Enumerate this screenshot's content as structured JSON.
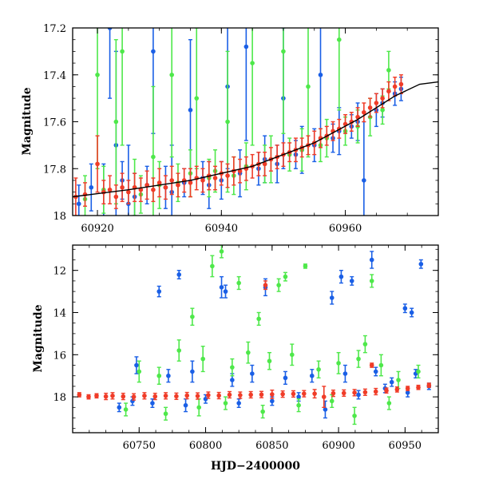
{
  "colors": {
    "blue": "#1a5fe6",
    "red": "#f03c28",
    "green": "#4ee84a",
    "model": "#000000"
  },
  "chart_data": [
    {
      "type": "scatter",
      "panel": "top",
      "xlabel": "",
      "ylabel": "Magnitude",
      "xlim": [
        60916,
        60975
      ],
      "ylim": [
        18.0,
        17.2
      ],
      "y_inverted": true,
      "x_ticks": [
        60920,
        60940,
        60960
      ],
      "x_tick_labels": [
        "60920",
        "60940",
        "60960"
      ],
      "y_ticks": [
        17.2,
        17.4,
        17.6,
        17.8,
        18.0
      ],
      "y_tick_labels": [
        "17.2",
        "17.4",
        "17.6",
        "17.8",
        "18"
      ],
      "model_curve": {
        "x": [
          60916,
          60925,
          60935,
          60945,
          60955,
          60962,
          60968,
          60972,
          60975
        ],
        "y": [
          17.92,
          17.89,
          17.85,
          17.79,
          17.69,
          17.59,
          17.49,
          17.44,
          17.43
        ]
      },
      "series": [
        {
          "color": "blue",
          "x": [
            60917,
            60919,
            60921,
            60922,
            60923,
            60924,
            60925,
            60926,
            60928,
            60929,
            60931,
            60932,
            60934,
            60935,
            60937,
            60938,
            60940,
            60941,
            60943,
            60944,
            60946,
            60947,
            60949,
            60950,
            60952,
            60953,
            60955,
            60956,
            60958,
            60959,
            60961,
            60962,
            60963,
            60965,
            60966,
            60968,
            60969
          ],
          "y": [
            17.95,
            17.88,
            17.9,
            17.2,
            17.7,
            17.85,
            17.95,
            17.92,
            17.87,
            17.3,
            17.88,
            17.9,
            17.86,
            17.55,
            17.84,
            17.87,
            17.85,
            17.45,
            17.82,
            17.28,
            17.8,
            17.76,
            17.78,
            17.5,
            17.74,
            17.72,
            17.7,
            17.4,
            17.67,
            17.64,
            17.62,
            17.6,
            17.85,
            17.55,
            17.52,
            17.48,
            17.46
          ],
          "err": [
            0.08,
            0.1,
            0.12,
            0.3,
            0.4,
            0.08,
            0.25,
            0.1,
            0.08,
            0.35,
            0.09,
            0.2,
            0.06,
            0.3,
            0.07,
            0.1,
            0.08,
            0.35,
            0.1,
            0.4,
            0.07,
            0.1,
            0.08,
            0.3,
            0.06,
            0.1,
            0.07,
            0.3,
            0.06,
            0.1,
            0.05,
            0.08,
            0.25,
            0.07,
            0.06,
            0.05,
            0.05
          ]
        },
        {
          "color": "green",
          "x": [
            60918,
            60920,
            60921,
            60923,
            60924,
            60926,
            60927,
            60929,
            60930,
            60932,
            60933,
            60935,
            60936,
            60938,
            60939,
            60941,
            60942,
            60944,
            60945,
            60947,
            60948,
            60950,
            60951,
            60953,
            60954,
            60956,
            60957,
            60959,
            60960,
            60962,
            60964,
            60966,
            60967
          ],
          "y": [
            17.93,
            17.4,
            17.89,
            17.6,
            17.3,
            17.88,
            17.91,
            17.75,
            17.87,
            17.4,
            17.86,
            17.82,
            17.5,
            17.84,
            17.81,
            17.6,
            17.83,
            17.79,
            17.35,
            17.78,
            17.76,
            17.3,
            17.74,
            17.72,
            17.45,
            17.7,
            17.67,
            17.25,
            17.64,
            17.62,
            17.58,
            17.55,
            17.38
          ],
          "err": [
            0.1,
            0.4,
            0.1,
            0.35,
            0.4,
            0.12,
            0.08,
            0.3,
            0.1,
            0.35,
            0.08,
            0.1,
            0.3,
            0.08,
            0.09,
            0.3,
            0.08,
            0.1,
            0.35,
            0.08,
            0.1,
            0.35,
            0.07,
            0.09,
            0.3,
            0.07,
            0.08,
            0.3,
            0.06,
            0.07,
            0.08,
            0.06,
            0.08
          ]
        },
        {
          "color": "red",
          "x": [
            60916.5,
            60918,
            60920,
            60921,
            60922,
            60923,
            60924,
            60925,
            60926,
            60927,
            60928,
            60929,
            60930,
            60931,
            60932,
            60933,
            60934,
            60935,
            60936,
            60937,
            60938,
            60939,
            60940,
            60941,
            60942,
            60943,
            60944,
            60945,
            60946,
            60947,
            60948,
            60949,
            60950,
            60951,
            60952,
            60953,
            60954,
            60955,
            60956,
            60957,
            60958,
            60959,
            60960,
            60961,
            60962,
            60963,
            60964,
            60965,
            60966,
            60967,
            60968,
            60969
          ],
          "y": [
            17.92,
            17.91,
            17.78,
            17.9,
            17.89,
            17.92,
            17.88,
            17.9,
            17.88,
            17.89,
            17.87,
            17.89,
            17.86,
            17.88,
            17.85,
            17.87,
            17.85,
            17.86,
            17.84,
            17.85,
            17.83,
            17.84,
            17.82,
            17.83,
            17.81,
            17.81,
            17.8,
            17.79,
            17.78,
            17.78,
            17.76,
            17.75,
            17.74,
            17.73,
            17.72,
            17.71,
            17.7,
            17.69,
            17.67,
            17.66,
            17.64,
            17.63,
            17.61,
            17.6,
            17.58,
            17.56,
            17.54,
            17.52,
            17.5,
            17.47,
            17.45,
            17.44
          ],
          "err": [
            0.08,
            0.05,
            0.12,
            0.05,
            0.06,
            0.05,
            0.06,
            0.05,
            0.06,
            0.05,
            0.06,
            0.05,
            0.06,
            0.05,
            0.06,
            0.05,
            0.05,
            0.06,
            0.05,
            0.05,
            0.06,
            0.05,
            0.05,
            0.05,
            0.06,
            0.05,
            0.05,
            0.05,
            0.05,
            0.05,
            0.05,
            0.05,
            0.05,
            0.04,
            0.05,
            0.04,
            0.04,
            0.05,
            0.04,
            0.04,
            0.04,
            0.04,
            0.04,
            0.04,
            0.04,
            0.04,
            0.04,
            0.04,
            0.04,
            0.04,
            0.04,
            0.04
          ]
        }
      ]
    },
    {
      "type": "scatter",
      "panel": "bottom",
      "xlabel": "HJD−2400000",
      "ylabel": "Magnitude",
      "xlim": [
        60700,
        60975
      ],
      "ylim": [
        19.7,
        10.8
      ],
      "y_inverted": true,
      "x_ticks": [
        60750,
        60800,
        60850,
        60900,
        60950
      ],
      "x_tick_labels": [
        "60750",
        "60800",
        "60850",
        "60900",
        "60950"
      ],
      "y_ticks": [
        12,
        14,
        16,
        18
      ],
      "y_tick_labels": [
        "12",
        "14",
        "16",
        "18"
      ],
      "series": [
        {
          "color": "blue",
          "x": [
            60765,
            60780,
            60812,
            60815,
            60845,
            60895,
            60902,
            60910,
            60925,
            60928,
            60950,
            60955,
            60962,
            60748,
            60772,
            60790,
            60820,
            60835,
            60860,
            60880,
            60905,
            60940,
            60958,
            60735,
            60745,
            60760,
            60785,
            60800,
            60825,
            60850,
            60870,
            60890,
            60915,
            60935,
            60952,
            60968
          ],
          "y": [
            13.0,
            12.2,
            12.8,
            13.0,
            12.8,
            13.3,
            12.3,
            12.5,
            11.5,
            16.8,
            13.8,
            14.0,
            11.7,
            16.5,
            17.0,
            16.8,
            17.2,
            16.9,
            17.1,
            17.0,
            16.9,
            17.3,
            16.9,
            18.5,
            18.2,
            18.3,
            18.4,
            18.1,
            18.3,
            18.2,
            18.0,
            18.6,
            17.9,
            17.6,
            17.8,
            17.5
          ],
          "err": [
            0.25,
            0.2,
            0.5,
            0.3,
            0.4,
            0.3,
            0.3,
            0.2,
            0.4,
            0.2,
            0.2,
            0.2,
            0.2,
            0.4,
            0.3,
            0.5,
            0.3,
            0.4,
            0.3,
            0.3,
            0.4,
            0.2,
            0.2,
            0.2,
            0.2,
            0.2,
            0.3,
            0.2,
            0.2,
            0.2,
            0.2,
            0.4,
            0.2,
            0.2,
            0.2,
            0.15
          ]
        },
        {
          "color": "green",
          "x": [
            60790,
            60805,
            60812,
            60825,
            60840,
            60855,
            60860,
            60875,
            60920,
            60925,
            60750,
            60765,
            60780,
            60798,
            60820,
            60832,
            60848,
            60865,
            60885,
            60900,
            60915,
            60932,
            60945,
            60960,
            60740,
            60770,
            60795,
            60815,
            60843,
            60870,
            60895,
            60912,
            60938
          ],
          "y": [
            14.2,
            11.8,
            11.1,
            12.6,
            14.3,
            12.7,
            12.3,
            11.8,
            15.5,
            12.5,
            16.8,
            17.0,
            15.8,
            16.2,
            16.6,
            15.9,
            16.3,
            16.0,
            16.7,
            16.4,
            16.2,
            16.5,
            17.2,
            16.8,
            18.6,
            18.8,
            18.5,
            18.3,
            18.7,
            18.4,
            18.2,
            18.9,
            18.3
          ],
          "err": [
            0.4,
            0.5,
            0.3,
            0.3,
            0.3,
            0.3,
            0.2,
            0.1,
            0.4,
            0.3,
            0.5,
            0.4,
            0.5,
            0.6,
            0.4,
            0.5,
            0.4,
            0.5,
            0.4,
            0.5,
            0.4,
            0.5,
            0.4,
            0.3,
            0.3,
            0.3,
            0.4,
            0.3,
            0.3,
            0.3,
            0.3,
            0.4,
            0.3
          ]
        },
        {
          "color": "red",
          "x": [
            60705,
            60712,
            60718,
            60725,
            60730,
            60738,
            60746,
            60754,
            60762,
            60770,
            60778,
            60786,
            60794,
            60802,
            60810,
            60818,
            60826,
            60834,
            60842,
            60850,
            60858,
            60866,
            60874,
            60882,
            60889,
            60896,
            60904,
            60912,
            60920,
            60928,
            60936,
            60944,
            60952,
            60960,
            60968,
            60845,
            60925
          ],
          "y": [
            17.9,
            18.0,
            17.95,
            17.98,
            17.95,
            17.98,
            18.0,
            17.95,
            17.98,
            17.95,
            17.97,
            17.94,
            17.96,
            17.92,
            17.94,
            17.9,
            17.92,
            17.9,
            17.89,
            17.88,
            17.87,
            17.86,
            17.85,
            17.85,
            18.0,
            17.83,
            17.82,
            17.8,
            17.78,
            17.75,
            17.7,
            17.65,
            17.6,
            17.55,
            17.45,
            12.7,
            16.5
          ],
          "err": [
            0.1,
            0.1,
            0.1,
            0.15,
            0.15,
            0.15,
            0.15,
            0.15,
            0.15,
            0.15,
            0.15,
            0.15,
            0.15,
            0.15,
            0.15,
            0.15,
            0.15,
            0.15,
            0.15,
            0.2,
            0.15,
            0.15,
            0.15,
            0.2,
            0.5,
            0.15,
            0.15,
            0.15,
            0.15,
            0.15,
            0.12,
            0.12,
            0.1,
            0.1,
            0.1,
            0.2,
            0.1
          ]
        }
      ]
    }
  ]
}
